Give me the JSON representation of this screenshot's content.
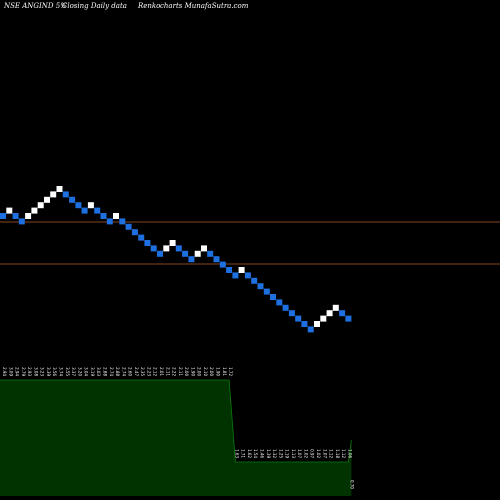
{
  "header": {
    "symbol": "NSE ANGIND 5%",
    "closing_label": "Closing Daily data",
    "chart_label": "Renko",
    "site_label": "charts MunafaSutra.com"
  },
  "colors": {
    "background": "#000000",
    "up_brick": "#ffffff",
    "down_brick": "#1e6fe0",
    "reference_line": "#b05a2a",
    "volume_fill": "#003300",
    "volume_line": "#0b7a0b"
  },
  "chart_data": {
    "type": "renko",
    "title": "NSE ANGIND 5%",
    "brick_percent": 5,
    "bricks": [
      {
        "dir": "down",
        "close": 2.94
      },
      {
        "dir": "up",
        "close": 3.09
      },
      {
        "dir": "down",
        "close": 2.94
      },
      {
        "dir": "down",
        "close": 2.79
      },
      {
        "dir": "up",
        "close": 2.93
      },
      {
        "dir": "up",
        "close": 3.08
      },
      {
        "dir": "up",
        "close": 3.23
      },
      {
        "dir": "up",
        "close": 3.39
      },
      {
        "dir": "up",
        "close": 3.56
      },
      {
        "dir": "up",
        "close": 3.74
      },
      {
        "dir": "down",
        "close": 3.55
      },
      {
        "dir": "down",
        "close": 3.37
      },
      {
        "dir": "down",
        "close": 3.2
      },
      {
        "dir": "down",
        "close": 3.04
      },
      {
        "dir": "up",
        "close": 3.19
      },
      {
        "dir": "down",
        "close": 3.03
      },
      {
        "dir": "down",
        "close": 2.88
      },
      {
        "dir": "down",
        "close": 2.74
      },
      {
        "dir": "up",
        "close": 2.88
      },
      {
        "dir": "down",
        "close": 2.74
      },
      {
        "dir": "down",
        "close": 2.6
      },
      {
        "dir": "down",
        "close": 2.47
      },
      {
        "dir": "down",
        "close": 2.35
      },
      {
        "dir": "down",
        "close": 2.23
      },
      {
        "dir": "down",
        "close": 2.12
      },
      {
        "dir": "down",
        "close": 2.01
      },
      {
        "dir": "up",
        "close": 2.11
      },
      {
        "dir": "up",
        "close": 2.22
      },
      {
        "dir": "down",
        "close": 2.11
      },
      {
        "dir": "down",
        "close": 2.0
      },
      {
        "dir": "down",
        "close": 1.9
      },
      {
        "dir": "up",
        "close": 2.0
      },
      {
        "dir": "up",
        "close": 2.1
      },
      {
        "dir": "down",
        "close": 2.0
      },
      {
        "dir": "down",
        "close": 1.9
      },
      {
        "dir": "down",
        "close": 1.81
      },
      {
        "dir": "down",
        "close": 1.72
      },
      {
        "dir": "down",
        "close": 1.63
      },
      {
        "dir": "up",
        "close": 1.71
      },
      {
        "dir": "down",
        "close": 1.62
      },
      {
        "dir": "down",
        "close": 1.54
      },
      {
        "dir": "down",
        "close": 1.46
      },
      {
        "dir": "down",
        "close": 1.39
      },
      {
        "dir": "down",
        "close": 1.32
      },
      {
        "dir": "down",
        "close": 1.25
      },
      {
        "dir": "down",
        "close": 1.19
      },
      {
        "dir": "down",
        "close": 1.13
      },
      {
        "dir": "down",
        "close": 1.07
      },
      {
        "dir": "down",
        "close": 1.02
      },
      {
        "dir": "down",
        "close": 0.97
      },
      {
        "dir": "up",
        "close": 1.02
      },
      {
        "dir": "up",
        "close": 1.07
      },
      {
        "dir": "up",
        "close": 1.12
      },
      {
        "dir": "up",
        "close": 1.18
      },
      {
        "dir": "down",
        "close": 1.12
      },
      {
        "dir": "down",
        "close": 1.06
      }
    ],
    "reference_lines": [
      2.88,
      2.01
    ],
    "volume_labels": [
      "2.94",
      "3.09",
      "2.94",
      "2.79",
      "2.93",
      "3.08",
      "3.23",
      "3.39",
      "3.56",
      "3.74",
      "3.55",
      "3.37",
      "3.20",
      "3.04",
      "3.19",
      "3.03",
      "2.88",
      "2.74",
      "2.88",
      "2.74",
      "2.60",
      "2.47",
      "2.35",
      "2.23",
      "2.12",
      "2.01",
      "2.11",
      "2.22",
      "2.11",
      "2.00",
      "1.90",
      "2.00",
      "2.10",
      "2.00",
      "1.90",
      "1.81",
      "1.72",
      "1.63",
      "1.71",
      "1.62",
      "1.54",
      "1.46",
      "1.39",
      "1.32",
      "1.25",
      "1.19",
      "1.13",
      "1.07",
      "1.02",
      "0.97",
      "1.02",
      "1.07",
      "1.12",
      "1.18",
      "1.12",
      "1.06"
    ],
    "volume_last_label": "0.70"
  }
}
